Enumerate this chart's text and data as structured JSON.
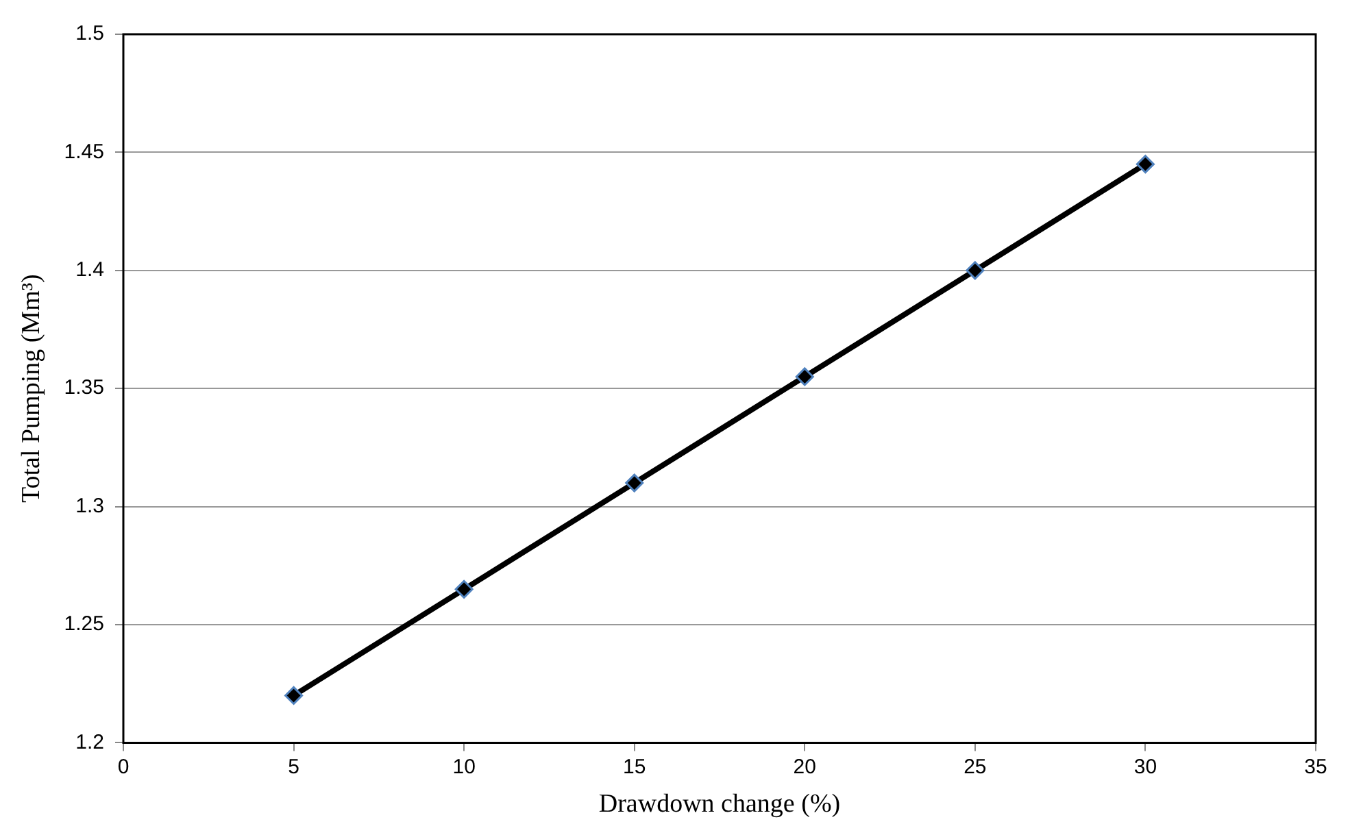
{
  "chart_data": {
    "type": "line",
    "xlabel": "Drawdown change (%)",
    "ylabel": "Total Pumping (Mm³)",
    "x": [
      5,
      10,
      15,
      20,
      25,
      30
    ],
    "series": [
      {
        "color": "#000000",
        "values": [
          1.22,
          1.265,
          1.31,
          1.355,
          1.4,
          1.445
        ]
      }
    ],
    "xlim": [
      0,
      35
    ],
    "xticks": [
      0,
      5,
      10,
      15,
      20,
      25,
      30,
      35
    ],
    "ylim": [
      1.2,
      1.5
    ],
    "yticks": [
      1.2,
      1.25,
      1.3,
      1.35,
      1.4,
      1.45,
      1.5
    ],
    "grid": "y",
    "legend": false,
    "marker": "diamond",
    "line_style": "solid"
  }
}
